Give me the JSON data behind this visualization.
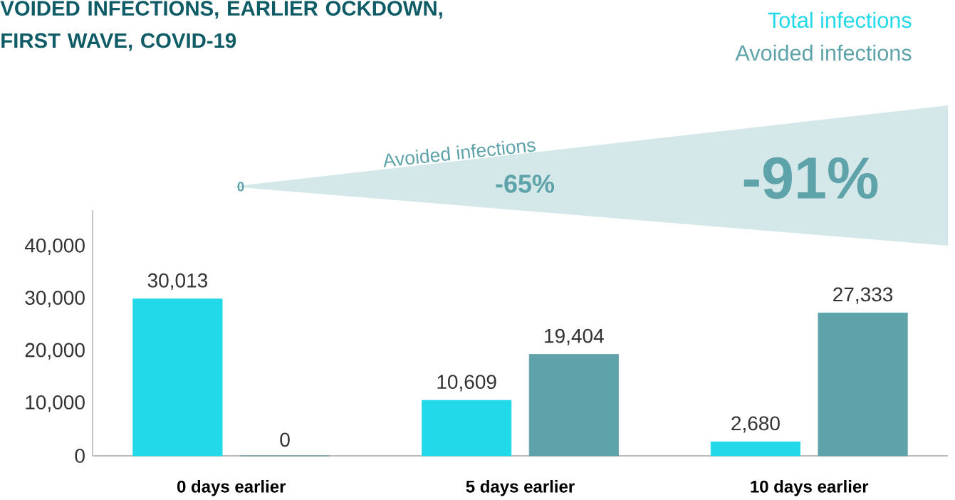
{
  "chart_data": {
    "type": "bar",
    "title": "VOIDED INFECTIONS, EARLIER OCKDOWN, FIRST WAVE, COVID-19",
    "categories": [
      "0 days earlier",
      "5 days earlier",
      "10 days earlier"
    ],
    "series": [
      {
        "name": "Total infections",
        "color": "#22d9ea",
        "values": [
          30013,
          10609,
          2680
        ],
        "value_labels": [
          "30,013",
          "10,609",
          "2,680"
        ]
      },
      {
        "name": "Avoided infections",
        "color": "#5fa3aa",
        "values": [
          0,
          19404,
          27333
        ],
        "value_labels": [
          "0",
          "19,404",
          "27,333"
        ]
      }
    ],
    "ylim": [
      0,
      47000
    ],
    "yticks": [
      {
        "value": 0,
        "label": "0"
      },
      {
        "value": 10000,
        "label": "10,000"
      },
      {
        "value": 20000,
        "label": "20,000"
      },
      {
        "value": 30000,
        "label": "30,000"
      },
      {
        "value": 40000,
        "label": "40,000"
      }
    ],
    "grid": false,
    "legend": "top right",
    "annotations": [
      "Avoided infections",
      "0",
      "-65%",
      "-91%"
    ]
  }
}
